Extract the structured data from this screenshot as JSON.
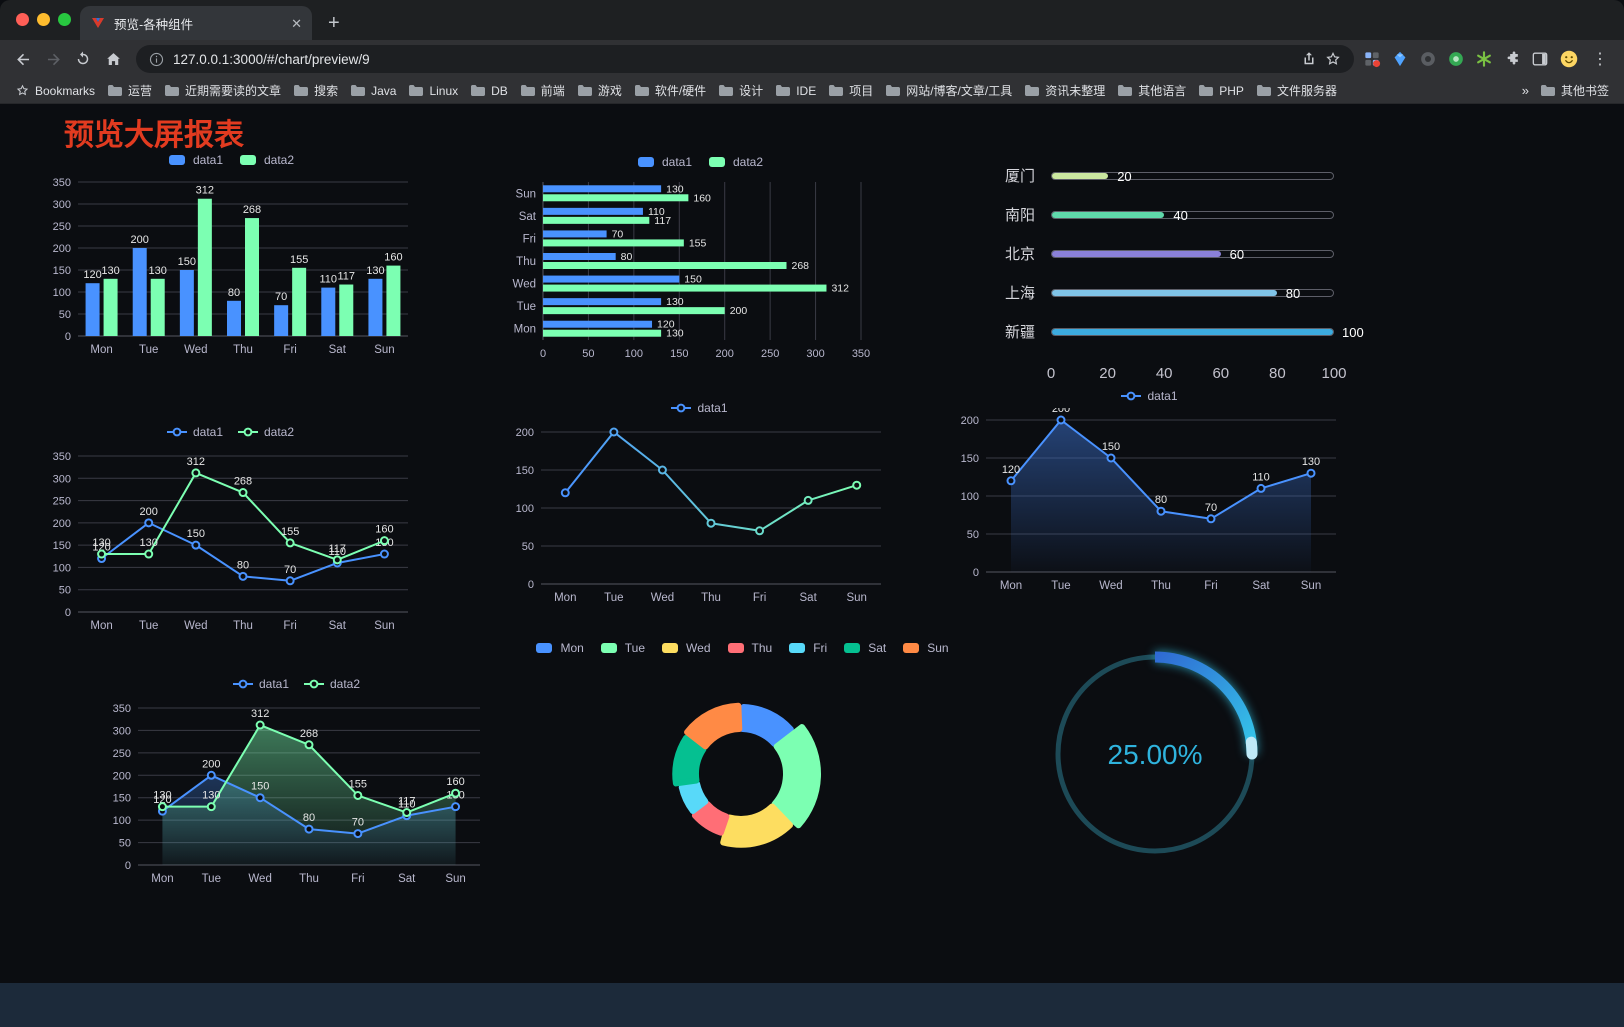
{
  "browser": {
    "tab_title": "预览-各种组件",
    "url": "127.0.0.1:3000/#/chart/preview/9",
    "bookmarks_label": "Bookmarks",
    "bookmarks": [
      "运营",
      "近期需要读的文章",
      "搜索",
      "Java",
      "Linux",
      "DB",
      "前端",
      "游戏",
      "软件/硬件",
      "设计",
      "IDE",
      "项目",
      "网站/博客/文章/工具",
      "资讯未整理",
      "其他语言",
      "PHP",
      "文件服务器"
    ],
    "bookmarks_overflow": "»",
    "other_bookmarks": "其他书签",
    "new_tab_glyph": "+",
    "tab_close_glyph": "✕",
    "menu_glyph": "⋮"
  },
  "page": {
    "title": "预览大屏报表"
  },
  "chart_data": [
    {
      "name": "grouped-bar",
      "type": "bar",
      "legend": true,
      "legend_icon": "rect",
      "labels": true,
      "categories": [
        "Mon",
        "Tue",
        "Wed",
        "Thu",
        "Fri",
        "Sat",
        "Sun"
      ],
      "series": [
        {
          "name": "data1",
          "color": "#4992ff",
          "values": [
            120,
            200,
            150,
            80,
            70,
            110,
            130
          ]
        },
        {
          "name": "data2",
          "color": "#7cffb2",
          "values": [
            130,
            130,
            312,
            268,
            155,
            117,
            160
          ]
        }
      ],
      "ylim": [
        0,
        350
      ],
      "ytick": 50
    },
    {
      "name": "horizontal-bar",
      "type": "hbar",
      "legend": true,
      "legend_icon": "rect",
      "labels": true,
      "categories": [
        "Mon",
        "Tue",
        "Wed",
        "Thu",
        "Fri",
        "Sat",
        "Sun"
      ],
      "series": [
        {
          "name": "data1",
          "color": "#4992ff",
          "values": [
            120,
            130,
            150,
            80,
            70,
            110,
            130
          ]
        },
        {
          "name": "data2",
          "color": "#7cffb2",
          "values": [
            130,
            200,
            312,
            268,
            155,
            117,
            160
          ]
        }
      ],
      "xlim": [
        0,
        350
      ],
      "xtick": 50
    },
    {
      "name": "progress-bars",
      "type": "progress",
      "categories": [
        "厦门",
        "南阳",
        "北京",
        "上海",
        "新疆"
      ],
      "values": [
        20,
        40,
        60,
        80,
        100
      ],
      "colors": [
        "#cbe7a0",
        "#5fd8ab",
        "#8a80d8",
        "#80c4e8",
        "#3cabdf"
      ],
      "xlim": [
        0,
        100
      ],
      "xticks": [
        0,
        20,
        40,
        60,
        80,
        100
      ]
    },
    {
      "name": "line-two-series",
      "type": "line",
      "legend": true,
      "legend_icon": "line",
      "labels": true,
      "categories": [
        "Mon",
        "Tue",
        "Wed",
        "Thu",
        "Fri",
        "Sat",
        "Sun"
      ],
      "series": [
        {
          "name": "data1",
          "color": "#4992ff",
          "values": [
            120,
            200,
            150,
            80,
            70,
            110,
            130
          ]
        },
        {
          "name": "data2",
          "color": "#7cffb2",
          "values": [
            130,
            130,
            312,
            268,
            155,
            117,
            160
          ]
        }
      ],
      "ylim": [
        0,
        350
      ],
      "ytick": 50
    },
    {
      "name": "line-gradient",
      "type": "line",
      "legend": true,
      "legend_icon": "line",
      "labels": false,
      "categories": [
        "Mon",
        "Tue",
        "Wed",
        "Thu",
        "Fri",
        "Sat",
        "Sun"
      ],
      "series": [
        {
          "name": "data1",
          "color": "#4992ff",
          "values": [
            120,
            200,
            150,
            80,
            70,
            110,
            130
          ]
        }
      ],
      "gradient_stroke": [
        "#4992ff",
        "#7cffb2"
      ],
      "ylim": [
        0,
        200
      ],
      "ytick": 50
    },
    {
      "name": "line-area",
      "type": "line",
      "legend": true,
      "legend_icon": "line",
      "labels": true,
      "categories": [
        "Mon",
        "Tue",
        "Wed",
        "Thu",
        "Fri",
        "Sat",
        "Sun"
      ],
      "series": [
        {
          "name": "data1",
          "color": "#4992ff",
          "area": "#3a6ec8",
          "area_opacity": 0.55,
          "values": [
            120,
            200,
            150,
            80,
            70,
            110,
            130
          ]
        }
      ],
      "ylim": [
        0,
        200
      ],
      "ytick": 50
    },
    {
      "name": "line-area-two-series",
      "type": "line",
      "legend": true,
      "legend_icon": "line",
      "labels": true,
      "categories": [
        "Mon",
        "Tue",
        "Wed",
        "Thu",
        "Fri",
        "Sat",
        "Sun"
      ],
      "series": [
        {
          "name": "data1",
          "color": "#4992ff",
          "area": "#4992ff",
          "area_opacity": 0.3,
          "values": [
            120,
            200,
            150,
            80,
            70,
            110,
            130
          ]
        },
        {
          "name": "data2",
          "color": "#7cffb2",
          "area": "#7cffb2",
          "area_opacity": 0.45,
          "values": [
            130,
            130,
            312,
            268,
            155,
            117,
            160
          ]
        }
      ],
      "ylim": [
        0,
        350
      ],
      "ytick": 50
    },
    {
      "name": "rose-pie",
      "type": "pie",
      "legend": true,
      "legend_icon": "rect",
      "categories": [
        "Mon",
        "Tue",
        "Wed",
        "Thu",
        "Fri",
        "Sat",
        "Sun"
      ],
      "values": [
        120,
        200,
        150,
        80,
        70,
        110,
        130
      ],
      "colors": [
        "#4992ff",
        "#7cffb2",
        "#fddd60",
        "#ff6e76",
        "#58d9f9",
        "#05c091",
        "#ff8a45"
      ]
    },
    {
      "name": "gauge",
      "type": "gauge",
      "percent": 25,
      "label": "25.00%",
      "ring_color": "#1d4a57",
      "colors": [
        "#2f6ad3",
        "#35c9ea"
      ],
      "cap_color": "#bfe9f7",
      "text_color": "#2fb3dd"
    }
  ]
}
